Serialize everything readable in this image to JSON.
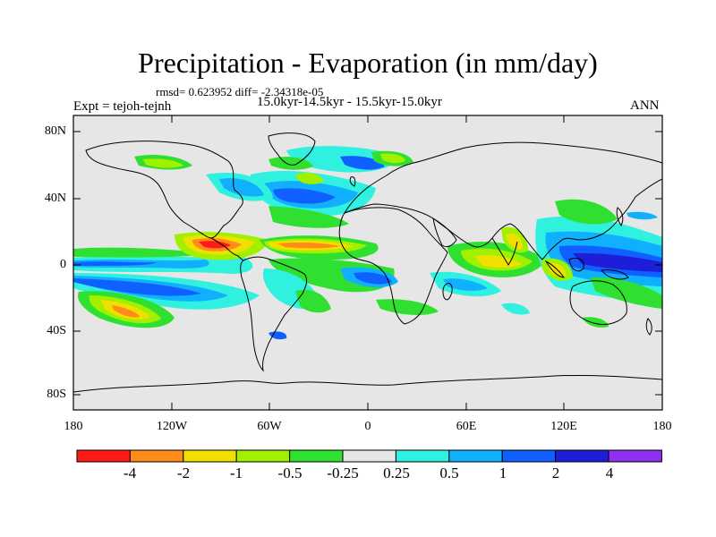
{
  "title": "Precipitation - Evaporation (in mm/day)",
  "stats": "rmsd= 0.623952 diff= -2.34318e-05",
  "period": "15.0kyr-14.5kyr - 15.5kyr-15.0kyr",
  "experiment": "Expt = tejoh-tejnh",
  "season": "ANN",
  "axes": {
    "lat_ticks": [
      "80N",
      "40N",
      "0",
      "40S",
      "80S"
    ],
    "lon_ticks": [
      "180",
      "120W",
      "60W",
      "0",
      "60E",
      "120E",
      "180"
    ]
  },
  "colorbar": {
    "labels": [
      "-4",
      "-2",
      "-1",
      "-0.5",
      "-0.25",
      "0.25",
      "0.5",
      "1",
      "2",
      "4"
    ],
    "colors": [
      "#ff1a1a",
      "#ff8c1a",
      "#f0e000",
      "#a0f000",
      "#30e030",
      "#e6e6e6",
      "#30f0e0",
      "#10b0ff",
      "#1060ff",
      "#1e1ed8",
      "#9030f0"
    ]
  },
  "colors": {
    "background_field": "#e6e6e6",
    "coastline": "#000000"
  }
}
